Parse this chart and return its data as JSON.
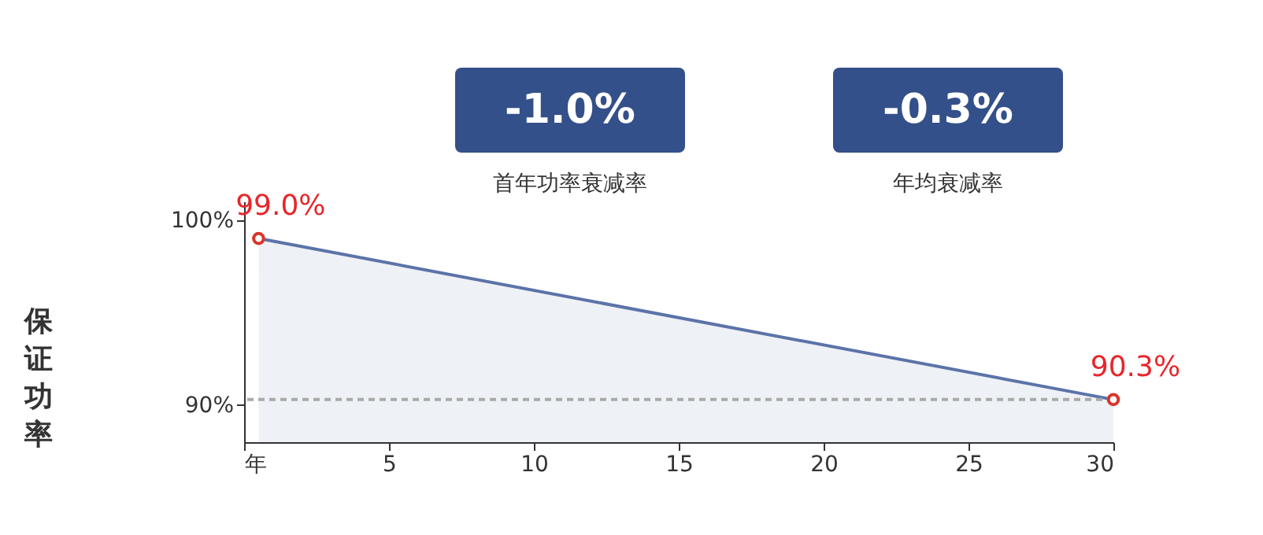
{
  "chart_data": {
    "type": "area",
    "ylabel": "保证功率",
    "x": [
      0.5,
      30
    ],
    "series": [
      {
        "color": "#5b73a8",
        "values": [
          99.0,
          90.3
        ],
        "value_labels": [
          "99.0%",
          "90.3%"
        ]
      }
    ],
    "xlim": [
      0,
      30
    ],
    "xticks": [
      {
        "value": 0,
        "label": "年"
      },
      5,
      10,
      15,
      20,
      25,
      30
    ],
    "ylim": [
      88,
      101
    ],
    "yticks": [
      {
        "value": 90,
        "label": "90%"
      },
      {
        "value": 100,
        "label": "100%"
      }
    ],
    "ref_lines": [
      {
        "axis": "y",
        "value": 90.3,
        "color": "#aaaaaa",
        "line_style": "dashed"
      }
    ],
    "annotations": [
      "-1.0%",
      "首年功率衰减率",
      "-0.3%",
      "年均衰减率"
    ],
    "marker": "circle",
    "grid": false
  }
}
